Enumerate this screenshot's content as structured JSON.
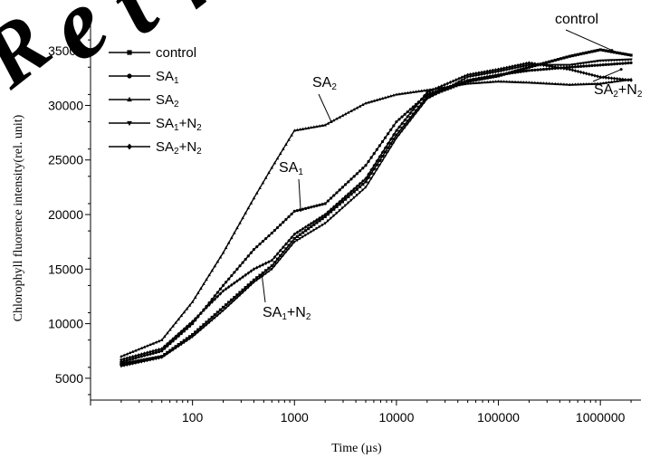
{
  "chart_data": {
    "type": "line",
    "xlabel": "Time (µs)",
    "ylabel": "Chlorophyll fluorence intensity(rel. unit)",
    "xscale": "log",
    "xlim": [
      10,
      2500000
    ],
    "ylim": [
      3000,
      38000
    ],
    "x_ticks": [
      100,
      1000,
      10000,
      100000,
      1000000
    ],
    "x_tick_labels": [
      "100",
      "1000",
      "10000",
      "100000",
      "1000000"
    ],
    "y_ticks": [
      5000,
      10000,
      15000,
      20000,
      25000,
      30000,
      35000
    ],
    "y_tick_labels": [
      "5000",
      "10000",
      "15000",
      "20000",
      "25000",
      "30000",
      "35000"
    ],
    "grid": false,
    "legend_position": "top-left",
    "series": [
      {
        "name": "control",
        "marker": "square",
        "points": [
          [
            20,
            6300
          ],
          [
            50,
            7000
          ],
          [
            100,
            9000
          ],
          [
            200,
            11500
          ],
          [
            400,
            14000
          ],
          [
            600,
            15300
          ],
          [
            1000,
            17800
          ],
          [
            2000,
            19800
          ],
          [
            5000,
            23000
          ],
          [
            10000,
            27300
          ],
          [
            20000,
            30800
          ],
          [
            50000,
            32200
          ],
          [
            100000,
            32700
          ],
          [
            200000,
            33500
          ],
          [
            500000,
            34500
          ],
          [
            1000000,
            35100
          ],
          [
            2000000,
            34600
          ]
        ]
      },
      {
        "name": "SA_1",
        "marker": "circle",
        "points": [
          [
            20,
            6500
          ],
          [
            50,
            7500
          ],
          [
            100,
            10000
          ],
          [
            200,
            13500
          ],
          [
            400,
            16800
          ],
          [
            600,
            18300
          ],
          [
            1000,
            20300
          ],
          [
            2000,
            21000
          ],
          [
            5000,
            24500
          ],
          [
            10000,
            28500
          ],
          [
            20000,
            31000
          ],
          [
            50000,
            32300
          ],
          [
            100000,
            32800
          ],
          [
            200000,
            33200
          ],
          [
            500000,
            33500
          ],
          [
            1000000,
            33700
          ],
          [
            2000000,
            33900
          ]
        ]
      },
      {
        "name": "SA_2",
        "marker": "triangle-up",
        "points": [
          [
            20,
            7000
          ],
          [
            50,
            8500
          ],
          [
            100,
            12000
          ],
          [
            200,
            16500
          ],
          [
            400,
            21500
          ],
          [
            600,
            24300
          ],
          [
            1000,
            27700
          ],
          [
            2000,
            28200
          ],
          [
            5000,
            30200
          ],
          [
            10000,
            31000
          ],
          [
            20000,
            31400
          ],
          [
            50000,
            32000
          ],
          [
            100000,
            32200
          ],
          [
            200000,
            32100
          ],
          [
            500000,
            31900
          ],
          [
            1000000,
            32000
          ],
          [
            2000000,
            32400
          ]
        ]
      },
      {
        "name": "SA_1+N_2",
        "marker": "triangle-down",
        "points": [
          [
            20,
            6100
          ],
          [
            50,
            6900
          ],
          [
            100,
            8800
          ],
          [
            200,
            11200
          ],
          [
            400,
            13800
          ],
          [
            600,
            15000
          ],
          [
            1000,
            17500
          ],
          [
            2000,
            19200
          ],
          [
            5000,
            22500
          ],
          [
            10000,
            27000
          ],
          [
            20000,
            30600
          ],
          [
            50000,
            32600
          ],
          [
            100000,
            33100
          ],
          [
            200000,
            33700
          ],
          [
            500000,
            33700
          ],
          [
            1000000,
            34100
          ],
          [
            2000000,
            34200
          ]
        ]
      },
      {
        "name": "SA_2+N_2",
        "marker": "diamond",
        "points": [
          [
            20,
            6700
          ],
          [
            50,
            7700
          ],
          [
            100,
            10200
          ],
          [
            200,
            13000
          ],
          [
            400,
            15000
          ],
          [
            600,
            15800
          ],
          [
            1000,
            18200
          ],
          [
            2000,
            20000
          ],
          [
            5000,
            23300
          ],
          [
            10000,
            27700
          ],
          [
            20000,
            31200
          ],
          [
            50000,
            32800
          ],
          [
            100000,
            33300
          ],
          [
            200000,
            33900
          ],
          [
            500000,
            33300
          ],
          [
            1000000,
            32600
          ],
          [
            2000000,
            32300
          ]
        ]
      }
    ],
    "annotations": [
      {
        "label": "control",
        "series": 0
      },
      {
        "label": "SA_2+N_2",
        "series": 4
      },
      {
        "label": "SA_2",
        "series": 2
      },
      {
        "label": "SA_1",
        "series": 1
      },
      {
        "label": "SA_1+N_2",
        "series": 3
      }
    ]
  },
  "watermark": {
    "text": "Retr",
    "note": "large diagonal RETRACTED-style watermark letters partially visible"
  }
}
